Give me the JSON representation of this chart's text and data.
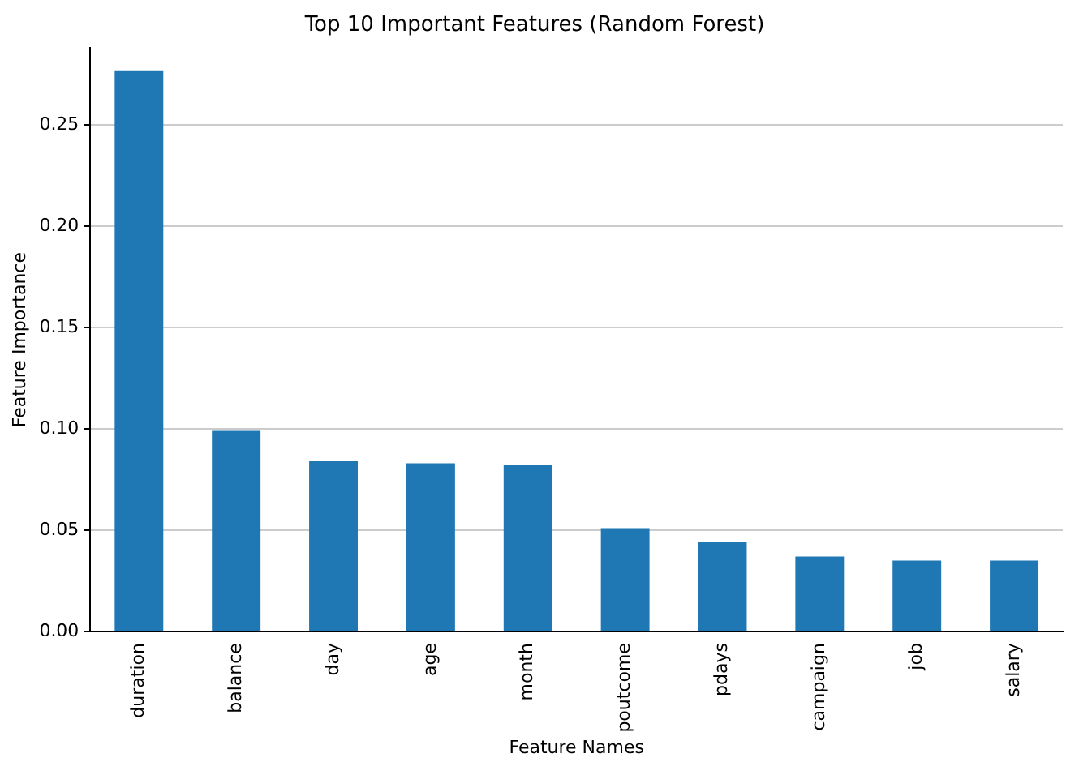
{
  "chart_data": {
    "type": "bar",
    "title": "Top 10 Important Features (Random Forest)",
    "xlabel": "Feature Names",
    "ylabel": "Feature Importance",
    "categories": [
      "duration",
      "balance",
      "day",
      "age",
      "month",
      "poutcome",
      "pdays",
      "campaign",
      "job",
      "salary"
    ],
    "values": [
      0.277,
      0.099,
      0.084,
      0.083,
      0.082,
      0.051,
      0.044,
      0.037,
      0.035,
      0.035
    ],
    "color": "#1f77b4",
    "ylim": [
      0,
      0.288
    ],
    "yticks": [
      {
        "value": 0,
        "label": "0.00"
      },
      {
        "value": 0.05,
        "label": "0.05"
      },
      {
        "value": 0.1,
        "label": "0.10"
      },
      {
        "value": 0.15,
        "label": "0.15"
      },
      {
        "value": 0.2,
        "label": "0.20"
      },
      {
        "value": 0.25,
        "label": "0.25"
      }
    ],
    "grid": "y"
  }
}
